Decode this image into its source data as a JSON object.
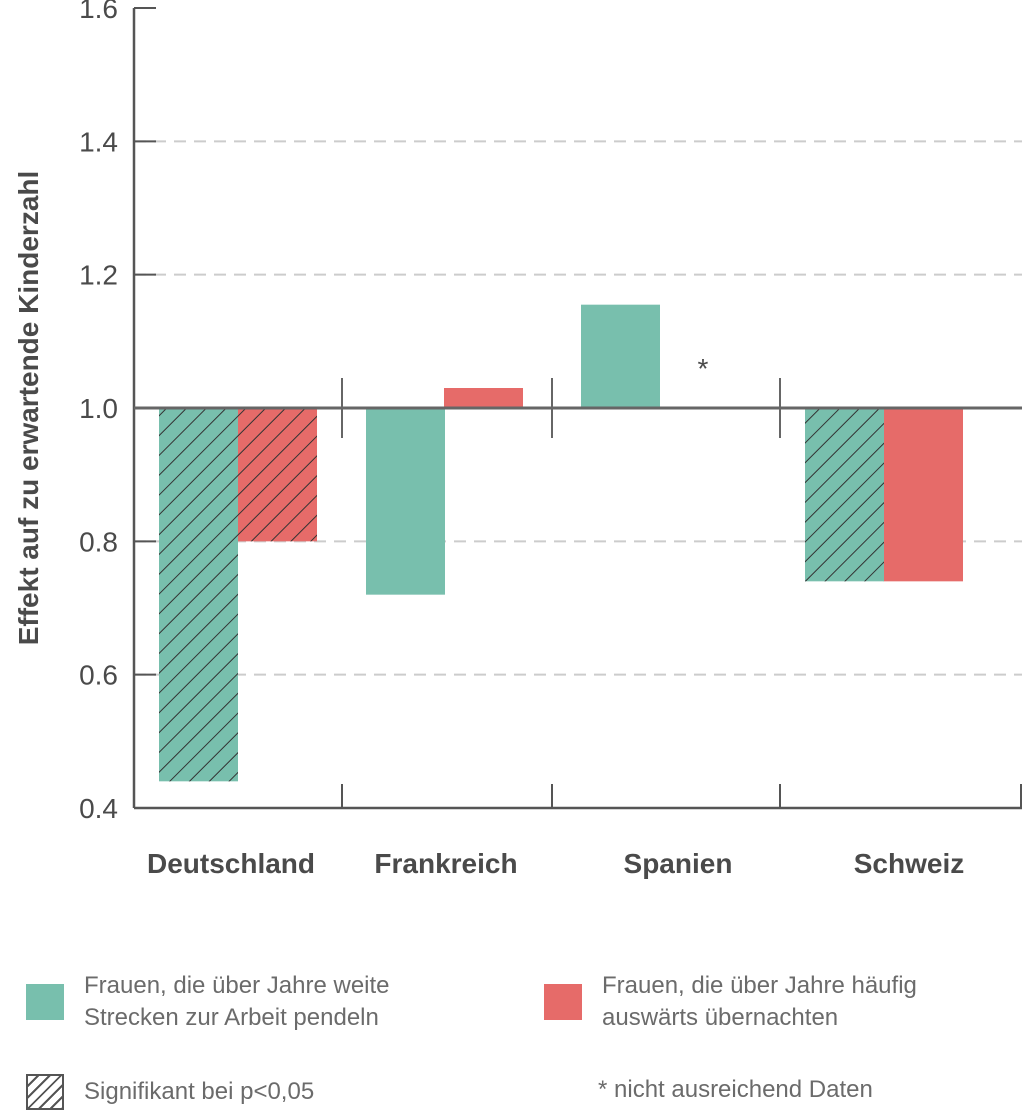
{
  "chart_data": {
    "type": "bar",
    "ylabel": "Effekt auf zu erwartende Kinderzahl",
    "ylim": [
      0.4,
      1.6
    ],
    "yticks": [
      "0.4",
      "0.6",
      "0.8",
      "1.0",
      "1.2",
      "1.4",
      "1.6"
    ],
    "baseline": 1.0,
    "grid": "dashed horizontal",
    "categories": [
      "Deutschland",
      "Frankreich",
      "Spanien",
      "Schweiz"
    ],
    "series": [
      {
        "name": "Frauen, die über Jahre weite Strecken zur Arbeit pendeln",
        "color": "#78bfad",
        "values": [
          0.44,
          0.72,
          1.155,
          0.74
        ],
        "significant": [
          true,
          false,
          false,
          true
        ]
      },
      {
        "name": "Frauen, die über Jahre häufig auswärts übernachten",
        "color": "#e66b69",
        "values": [
          0.8,
          1.03,
          null,
          0.74
        ],
        "significant": [
          true,
          false,
          false,
          false
        ]
      }
    ],
    "annotations": [
      {
        "category": "Spanien",
        "text": "*"
      }
    ]
  },
  "legend": {
    "series1": "Frauen, die über Jahre weite\nStrecken zur Arbeit pendeln",
    "series2": "Frauen, die über Jahre häufig\nauswärts übernachten",
    "significance": "Signifikant bei p<0,05",
    "insufficient": "* nicht ausreichend Daten"
  }
}
